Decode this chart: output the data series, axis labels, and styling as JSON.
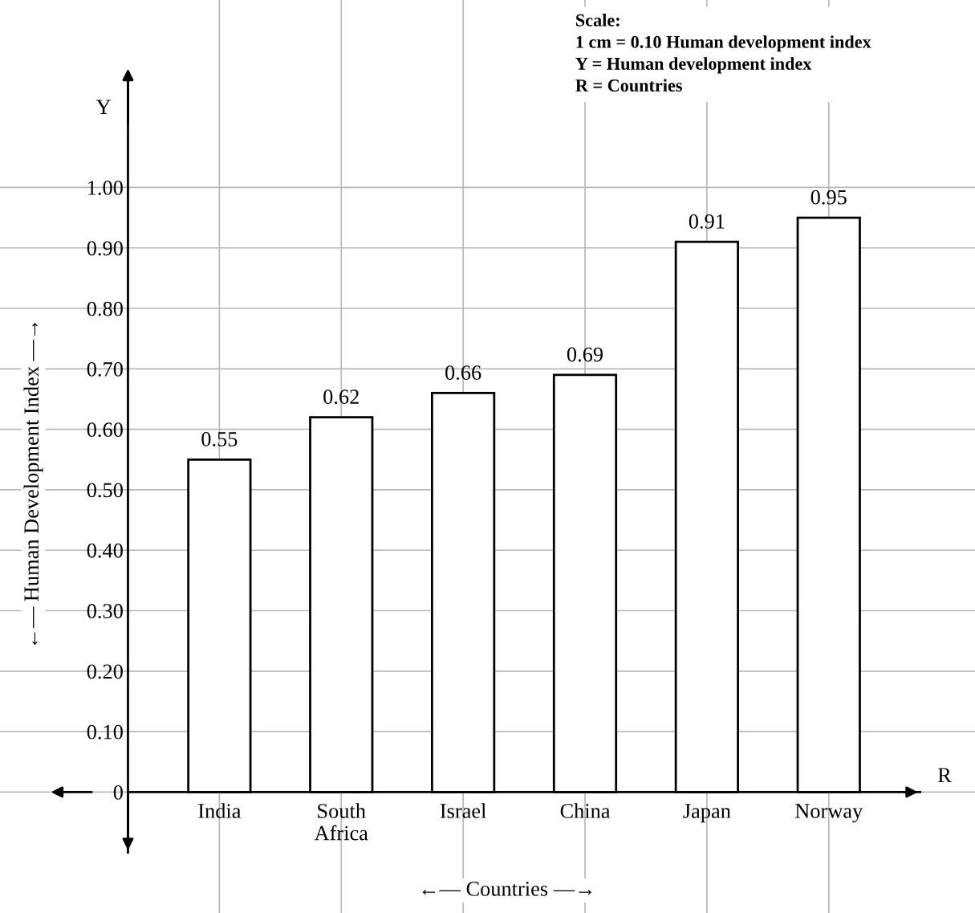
{
  "chart_data": {
    "type": "bar",
    "categories": [
      "India",
      "South\nAfrica",
      "Israel",
      "China",
      "Japan",
      "Norway"
    ],
    "values": [
      0.55,
      0.62,
      0.66,
      0.69,
      0.91,
      0.95
    ],
    "color": "#ffffff",
    "xlabel": "←— Countries —→",
    "ylabel": "←— Human Development Index —→",
    "ylim": [
      -0.2,
      1.31
    ],
    "yticks": [
      {
        "value": 0,
        "label": "0"
      },
      {
        "value": 0.1,
        "label": "0.10"
      },
      {
        "value": 0.2,
        "label": "0.20"
      },
      {
        "value": 0.3,
        "label": "0.30"
      },
      {
        "value": 0.4,
        "label": "0.40"
      },
      {
        "value": 0.5,
        "label": "0.50"
      },
      {
        "value": 0.6,
        "label": "0.60"
      },
      {
        "value": 0.7,
        "label": "0.70"
      },
      {
        "value": 0.8,
        "label": "0.80"
      },
      {
        "value": 0.9,
        "label": "0.90"
      },
      {
        "value": 1.0,
        "label": "1.00"
      }
    ],
    "annotations": [
      "Y",
      "R",
      "Scale:",
      "1 cm = 0.10 Human development index",
      "Y = Human development index",
      "R = Countries"
    ],
    "data_labels": true,
    "grid": true
  }
}
